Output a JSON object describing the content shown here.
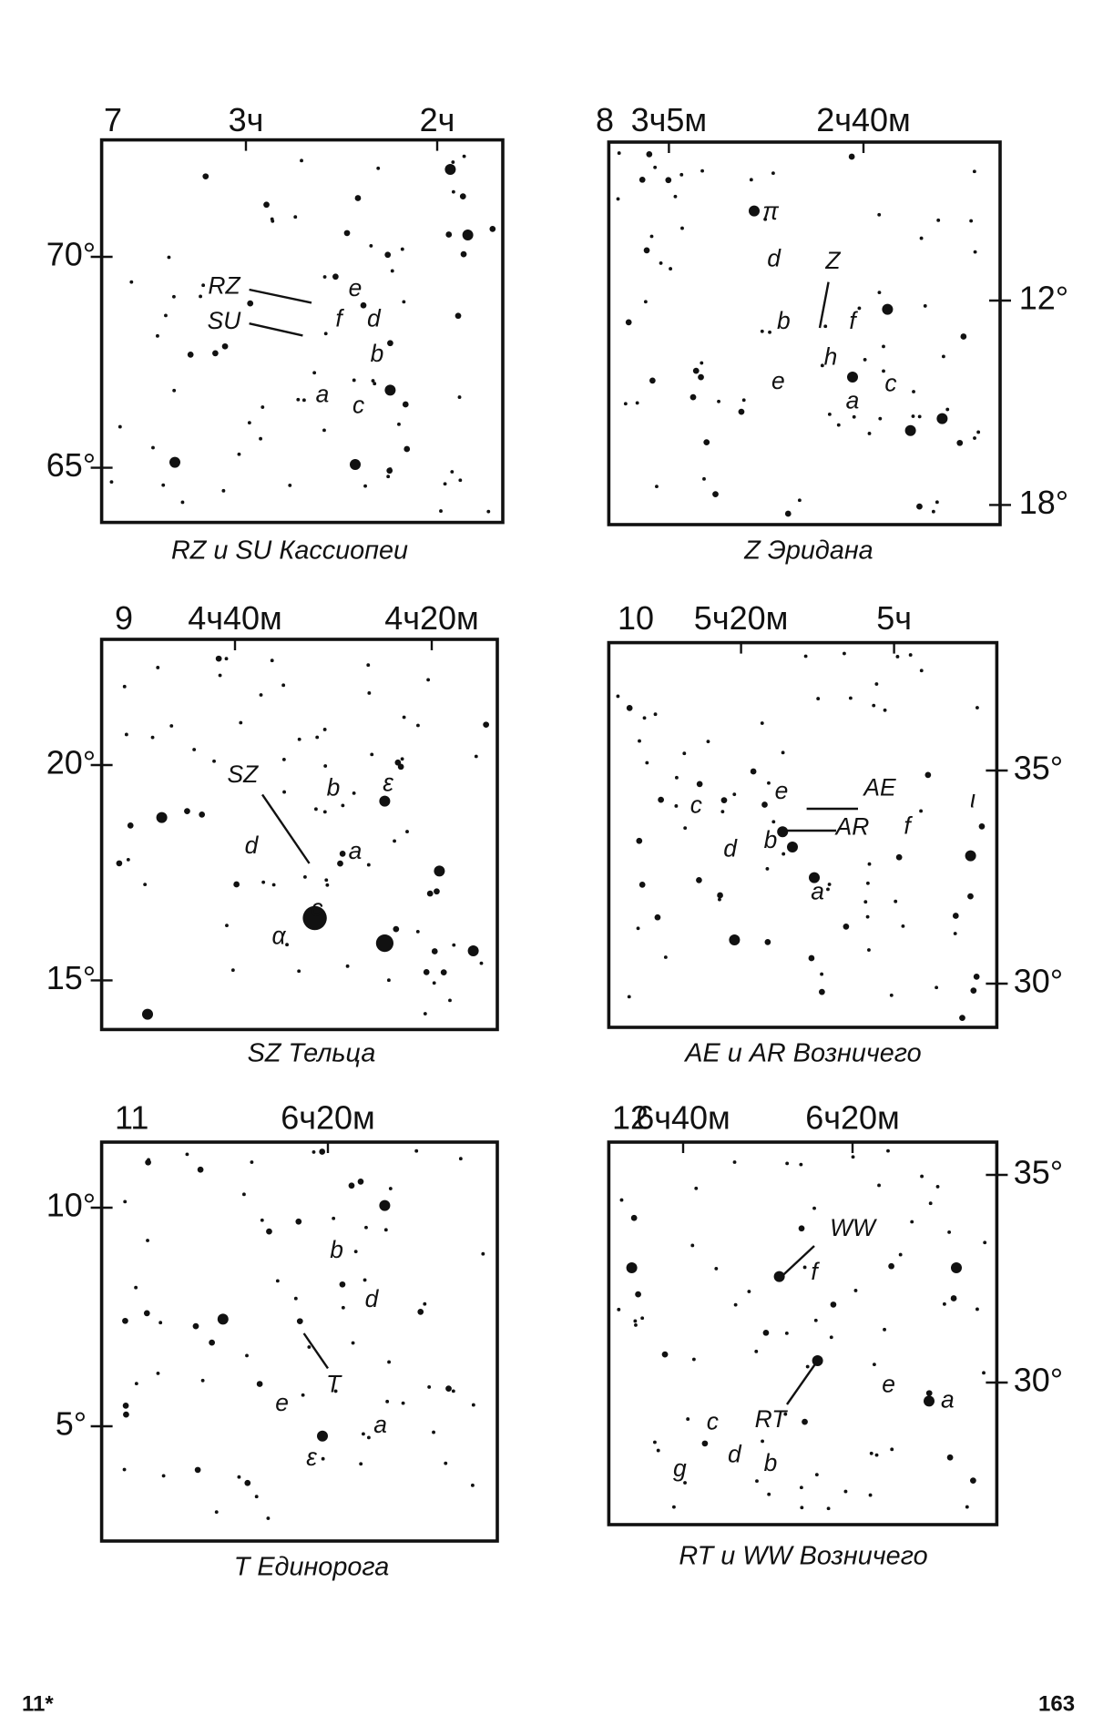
{
  "panels": [
    {
      "number": "7",
      "ra_labels": [
        "3ч",
        "2ч"
      ],
      "dec_labels": [
        "70°",
        "65°"
      ],
      "star_labels": [
        "RZ",
        "SU",
        "e",
        "f",
        "d",
        "b",
        "a",
        "c"
      ],
      "caption": "RZ и SU Кассиопеи"
    },
    {
      "number": "8",
      "ra_labels": [
        "3ч5м",
        "2ч40м"
      ],
      "dec_labels": [
        "12°",
        "18°"
      ],
      "star_labels": [
        "π",
        "d",
        "Z",
        "b",
        "f",
        "h",
        "e",
        "a",
        "c"
      ],
      "caption": "Z Эридана"
    },
    {
      "number": "9",
      "ra_labels": [
        "4ч40м",
        "4ч20м"
      ],
      "dec_labels": [
        "20°",
        "15°"
      ],
      "star_labels": [
        "SZ",
        "b",
        "ε",
        "d",
        "a",
        "c",
        "α"
      ],
      "caption": "SZ Тельца"
    },
    {
      "number": "10",
      "ra_labels": [
        "5ч20м",
        "5ч"
      ],
      "dec_labels": [
        "35°",
        "30°"
      ],
      "star_labels": [
        "c",
        "e",
        "AE",
        "AR",
        "b",
        "d",
        "f",
        "ι",
        "a"
      ],
      "caption": "AE и AR Возничего"
    },
    {
      "number": "11",
      "ra_labels": [
        "6ч20м"
      ],
      "dec_labels": [
        "10°",
        "5°"
      ],
      "star_labels": [
        "b",
        "d",
        "T",
        "e",
        "a",
        "ε"
      ],
      "caption": "T Единорога"
    },
    {
      "number": "12",
      "ra_labels": [
        "6ч40м",
        "6ч20м"
      ],
      "dec_labels": [
        "35°",
        "30°"
      ],
      "star_labels": [
        "WW",
        "f",
        "RT",
        "e",
        "a",
        "c",
        "d",
        "b",
        "g"
      ],
      "caption": "RT и WW Возничего"
    }
  ],
  "footer": {
    "left": "11*",
    "right": "163"
  }
}
